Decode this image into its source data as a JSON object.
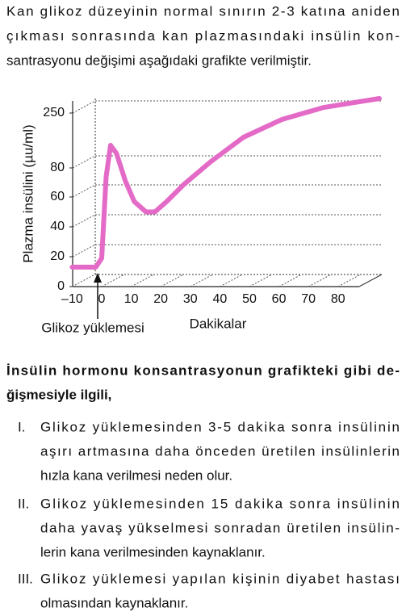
{
  "intro": {
    "lines": [
      "Kan glikoz düzeyinin normal sınırın 2-3 katına aniden",
      "çıkması sonrasında kan plazmasındaki insülin kon-",
      "santrasyonu değişimi aşağıdaki grafikte verilmiştir."
    ]
  },
  "chart_data": {
    "type": "line",
    "y_label": "Plazma insülini (µu/ml)",
    "x_label": "Dakikalar",
    "annotation": "Glikoz yüklemesi",
    "x": [
      -10,
      -2,
      0,
      1.5,
      3,
      5,
      8,
      11,
      15,
      18,
      22,
      28,
      37,
      48,
      61,
      75,
      94
    ],
    "values": [
      13,
      13,
      19,
      74,
      150,
      125,
      71,
      57,
      50,
      50,
      57,
      69,
      100,
      175,
      230,
      267,
      295
    ],
    "color": "#e36ac6",
    "xlim": [
      -10,
      94
    ],
    "ylim": [
      0,
      300
    ],
    "xticks": [
      {
        "value": -10,
        "label": "–10"
      },
      0,
      10,
      20,
      30,
      40,
      50,
      60,
      70,
      80
    ],
    "yticks": [
      0,
      20,
      40,
      60,
      80,
      250
    ],
    "grid": true
  },
  "question": {
    "lines": [
      "İnsülin hormonu konsantrasyonun grafikteki gibi de-",
      "ğişmesiyle ilgili,"
    ]
  },
  "items": [
    {
      "numeral": "I.",
      "lines": [
        "Glikoz yüklemesinden 3-5 dakika sonra insülinin",
        "aşırı artmasına daha önceden üretilen insülinlerin",
        "hızla kana verilmesi neden olur."
      ]
    },
    {
      "numeral": "II.",
      "lines": [
        "Glikoz yüklemesinden 15 dakika sonra insülinin",
        "daha yavaş yükselmesi sonradan üretilen insülin-",
        "lerin kana verilmesinden kaynaklanır."
      ]
    },
    {
      "numeral": "III.",
      "lines": [
        "Glikoz yüklemesi yapılan kişinin diyabet hastası",
        "olmasından kaynaklanır."
      ]
    }
  ]
}
